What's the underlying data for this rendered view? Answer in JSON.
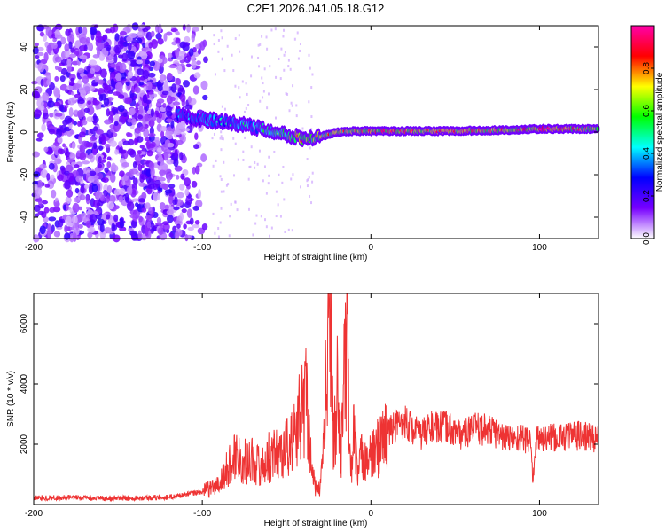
{
  "figure": {
    "title": "C2E1.2026.041.05.18.G12"
  },
  "chart_data": [
    {
      "type": "heatmap",
      "xlabel": "Height of straight line (km)",
      "ylabel": "Frequency (Hz)",
      "xlim": [
        -200,
        135
      ],
      "ylim": [
        -50,
        50
      ],
      "x_ticks": [
        -200,
        -100,
        0,
        100
      ],
      "x_tick_labels": [
        "-200",
        "-100",
        "0",
        "100"
      ],
      "y_ticks": [
        -40,
        -20,
        0,
        20,
        40
      ],
      "y_tick_labels": [
        "-40",
        "-20",
        "0",
        "20",
        "40"
      ],
      "colorbar": {
        "label": "Normalized spectral amplitude",
        "range": [
          0,
          1
        ],
        "ticks": [
          0,
          0.2,
          0.4,
          0.6,
          0.8
        ],
        "tick_labels": [
          "0.0",
          "0.2",
          "0.4",
          "0.6",
          "0.8"
        ],
        "colormap": [
          "#ffffff",
          "#7700ff",
          "#0000ff",
          "#00ffff",
          "#00ff00",
          "#ffff00",
          "#ff0000",
          "#ff00aa"
        ]
      },
      "ridge": {
        "height_km": [
          -115,
          -100,
          -80,
          -60,
          -50,
          -40,
          -30,
          -20,
          -10,
          0,
          20,
          50,
          80,
          100,
          135
        ],
        "frequency_hz": [
          8,
          6,
          4,
          1,
          -1,
          -3,
          -2,
          0,
          0.5,
          0.5,
          0.5,
          0.5,
          1,
          1.5,
          1.5
        ],
        "peak_amplitude": [
          0.4,
          0.45,
          0.5,
          0.6,
          0.75,
          0.85,
          0.8,
          0.9,
          0.9,
          0.95,
          0.95,
          0.9,
          0.95,
          1.0,
          0.9
        ]
      },
      "grid": false
    },
    {
      "type": "line",
      "xlabel": "Height of straight line (km)",
      "ylabel": "SNR (10 * v/v)",
      "xlim": [
        -200,
        135
      ],
      "ylim": [
        0,
        7000
      ],
      "x_ticks": [
        -200,
        -100,
        0,
        100
      ],
      "x_tick_labels": [
        "-200",
        "-100",
        "0",
        "100"
      ],
      "y_ticks": [
        2000,
        4000,
        6000
      ],
      "y_tick_labels": [
        "2000",
        "4000",
        "6000"
      ],
      "series": [
        {
          "color": "#ee3333",
          "x": [
            -200,
            -180,
            -160,
            -140,
            -120,
            -110,
            -100,
            -95,
            -90,
            -85,
            -80,
            -75,
            -70,
            -65,
            -60,
            -55,
            -50,
            -45,
            -42,
            -40,
            -38,
            -35,
            -32,
            -30,
            -28,
            -26,
            -25,
            -24,
            -23,
            -22,
            -20,
            -18,
            -16,
            -14,
            -12,
            -10,
            -8,
            -5,
            0,
            5,
            10,
            15,
            20,
            25,
            30,
            35,
            40,
            45,
            50,
            55,
            60,
            70,
            80,
            90,
            95,
            96,
            98,
            100,
            110,
            120,
            135
          ],
          "y": [
            220,
            230,
            210,
            220,
            240,
            330,
            420,
            550,
            650,
            1200,
            1700,
            1400,
            1500,
            1200,
            1600,
            1700,
            1900,
            2200,
            3000,
            3300,
            3700,
            1000,
            400,
            600,
            2100,
            4600,
            5200,
            7000,
            4000,
            2000,
            3800,
            1500,
            4000,
            5400,
            900,
            2500,
            1000,
            1700,
            1500,
            2000,
            2400,
            2600,
            2800,
            2500,
            2300,
            2600,
            2500,
            2600,
            2400,
            2300,
            2500,
            2500,
            2200,
            2200,
            2100,
            700,
            2100,
            2200,
            2200,
            2300,
            2200
          ]
        }
      ],
      "grid": false
    }
  ]
}
